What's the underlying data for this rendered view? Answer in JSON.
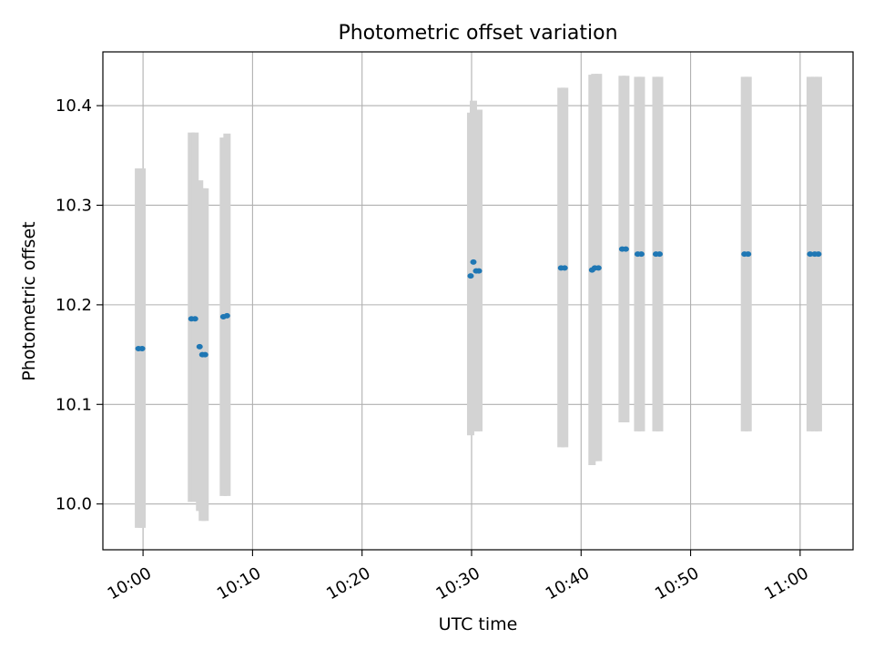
{
  "chart_data": {
    "type": "scatter",
    "title": "Photometric offset variation",
    "xlabel": "UTC time",
    "ylabel": "Photometric offset",
    "x_axis_type": "time",
    "xlim": [
      "09:56:20",
      "11:04:50"
    ],
    "ylim": [
      9.954,
      10.454
    ],
    "x_ticks": [
      "10:00",
      "10:10",
      "10:20",
      "10:30",
      "10:40",
      "10:50",
      "11:00"
    ],
    "y_ticks": [
      10.0,
      10.1,
      10.2,
      10.3,
      10.4
    ],
    "y_tick_labels": [
      "10.0",
      "10.1",
      "10.2",
      "10.3",
      "10.4"
    ],
    "grid": true,
    "marker_color": "#1f77b4",
    "errorbar_color": "#d3d3d3",
    "points": [
      {
        "t": "09:59:35",
        "y": 10.156,
        "lo": 9.976,
        "hi": 10.337
      },
      {
        "t": "09:59:55",
        "y": 10.156,
        "lo": 9.976,
        "hi": 10.337
      },
      {
        "t": "10:04:25",
        "y": 10.186,
        "lo": 10.002,
        "hi": 10.373
      },
      {
        "t": "10:04:45",
        "y": 10.186,
        "lo": 10.002,
        "hi": 10.373
      },
      {
        "t": "10:05:10",
        "y": 10.158,
        "lo": 9.993,
        "hi": 10.325
      },
      {
        "t": "10:05:25",
        "y": 10.15,
        "lo": 9.983,
        "hi": 10.317
      },
      {
        "t": "10:05:40",
        "y": 10.15,
        "lo": 9.983,
        "hi": 10.317
      },
      {
        "t": "10:07:20",
        "y": 10.188,
        "lo": 10.008,
        "hi": 10.368
      },
      {
        "t": "10:07:40",
        "y": 10.189,
        "lo": 10.008,
        "hi": 10.372
      },
      {
        "t": "10:29:55",
        "y": 10.229,
        "lo": 10.069,
        "hi": 10.393
      },
      {
        "t": "10:30:10",
        "y": 10.243,
        "lo": 10.078,
        "hi": 10.405
      },
      {
        "t": "10:30:25",
        "y": 10.234,
        "lo": 10.073,
        "hi": 10.396
      },
      {
        "t": "10:30:40",
        "y": 10.234,
        "lo": 10.073,
        "hi": 10.396
      },
      {
        "t": "10:38:10",
        "y": 10.237,
        "lo": 10.057,
        "hi": 10.418
      },
      {
        "t": "10:38:30",
        "y": 10.237,
        "lo": 10.057,
        "hi": 10.418
      },
      {
        "t": "10:41:00",
        "y": 10.235,
        "lo": 10.039,
        "hi": 10.431
      },
      {
        "t": "10:41:15",
        "y": 10.237,
        "lo": 10.043,
        "hi": 10.432
      },
      {
        "t": "10:41:35",
        "y": 10.237,
        "lo": 10.043,
        "hi": 10.432
      },
      {
        "t": "10:43:45",
        "y": 10.256,
        "lo": 10.082,
        "hi": 10.43
      },
      {
        "t": "10:44:05",
        "y": 10.256,
        "lo": 10.082,
        "hi": 10.43
      },
      {
        "t": "10:45:10",
        "y": 10.251,
        "lo": 10.073,
        "hi": 10.429
      },
      {
        "t": "10:45:30",
        "y": 10.251,
        "lo": 10.073,
        "hi": 10.429
      },
      {
        "t": "10:46:50",
        "y": 10.251,
        "lo": 10.073,
        "hi": 10.429
      },
      {
        "t": "10:47:10",
        "y": 10.251,
        "lo": 10.073,
        "hi": 10.429
      },
      {
        "t": "10:54:55",
        "y": 10.251,
        "lo": 10.073,
        "hi": 10.429
      },
      {
        "t": "10:55:15",
        "y": 10.251,
        "lo": 10.073,
        "hi": 10.429
      },
      {
        "t": "11:00:55",
        "y": 10.251,
        "lo": 10.073,
        "hi": 10.429
      },
      {
        "t": "11:01:20",
        "y": 10.251,
        "lo": 10.073,
        "hi": 10.429
      },
      {
        "t": "11:01:40",
        "y": 10.251,
        "lo": 10.073,
        "hi": 10.429
      }
    ]
  }
}
